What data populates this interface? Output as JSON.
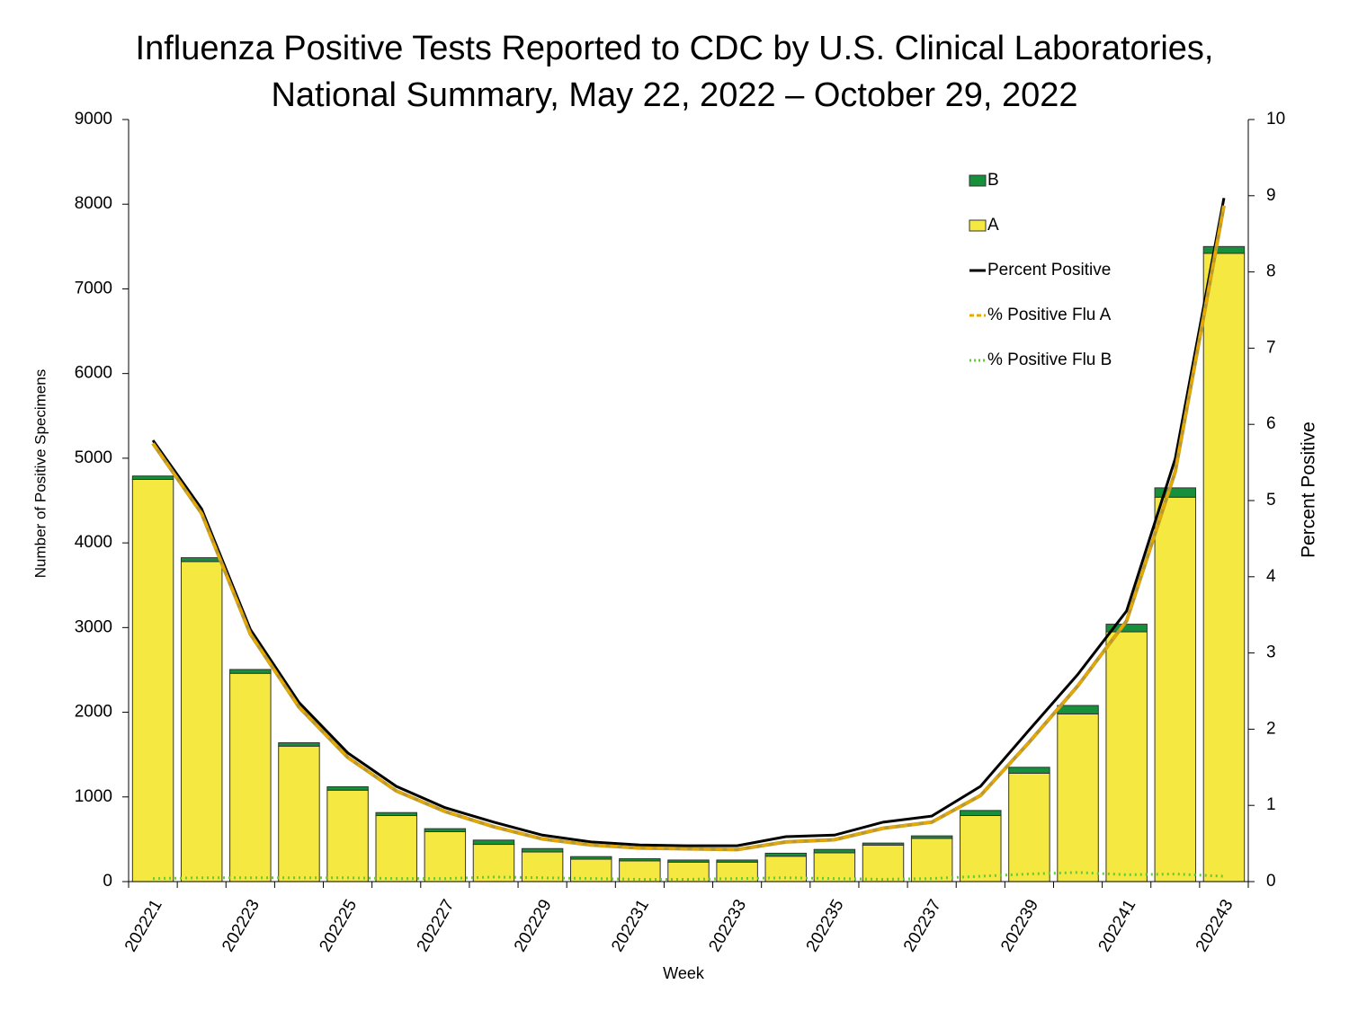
{
  "chart_data": {
    "type": "bar_line",
    "title": [
      "Influenza Positive Tests Reported to CDC by U.S. Clinical Laboratories,",
      "National Summary, May 22, 2022 – October 29, 2022"
    ],
    "x_label": "Week",
    "y_label": "Number of Positive Specimens",
    "y2_label": "Percent Positive",
    "categories": [
      "202221",
      null,
      "202223",
      null,
      "202225",
      null,
      "202227",
      null,
      "202229",
      null,
      "202231",
      null,
      "202233",
      null,
      "202235",
      null,
      "202237",
      null,
      "202239",
      null,
      "202241",
      null,
      "202243"
    ],
    "ylim": [
      0,
      9000
    ],
    "yticks": [
      0,
      1000,
      2000,
      3000,
      4000,
      5000,
      6000,
      7000,
      8000,
      9000
    ],
    "y2lim": [
      0,
      10
    ],
    "y2ticks": [
      0,
      1,
      2,
      3,
      4,
      5,
      6,
      7,
      8,
      9,
      10
    ],
    "series": [
      {
        "name": "B",
        "kind": "bar",
        "color": "#17903c",
        "values": [
          40,
          45,
          45,
          40,
          40,
          35,
          35,
          50,
          40,
          30,
          25,
          25,
          25,
          35,
          40,
          25,
          30,
          60,
          70,
          100,
          90,
          110,
          80
        ]
      },
      {
        "name": "A",
        "kind": "bar",
        "color": "#f5e840",
        "values": [
          4750,
          3780,
          2460,
          1600,
          1080,
          780,
          590,
          440,
          350,
          265,
          245,
          230,
          230,
          300,
          340,
          430,
          510,
          780,
          1280,
          1980,
          2950,
          4540,
          7420
        ]
      },
      {
        "name": "Percent Positive",
        "kind": "line",
        "axis": "y2",
        "color": "#000000",
        "dash": "solid",
        "values": [
          5.79,
          4.89,
          3.31,
          2.35,
          1.69,
          1.25,
          0.97,
          0.78,
          0.61,
          0.52,
          0.48,
          0.47,
          0.47,
          0.59,
          0.61,
          0.78,
          0.86,
          1.25,
          1.99,
          2.72,
          3.55,
          5.55,
          8.97
        ]
      },
      {
        "name": "% Positive Flu A",
        "kind": "line",
        "axis": "y2",
        "color": "#e8a800",
        "dash": "dashed",
        "values": [
          5.75,
          4.83,
          3.25,
          2.29,
          1.63,
          1.19,
          0.92,
          0.72,
          0.56,
          0.48,
          0.44,
          0.43,
          0.42,
          0.52,
          0.55,
          0.7,
          0.78,
          1.13,
          1.83,
          2.57,
          3.42,
          5.38,
          8.87
        ]
      },
      {
        "name": "% Positive Flu B",
        "kind": "line",
        "axis": "y2",
        "color": "#66cc33",
        "dash": "dotted",
        "values": [
          0.04,
          0.05,
          0.05,
          0.05,
          0.05,
          0.04,
          0.04,
          0.06,
          0.05,
          0.04,
          0.03,
          0.03,
          0.04,
          0.05,
          0.04,
          0.03,
          0.04,
          0.07,
          0.1,
          0.12,
          0.09,
          0.1,
          0.07
        ]
      }
    ]
  }
}
